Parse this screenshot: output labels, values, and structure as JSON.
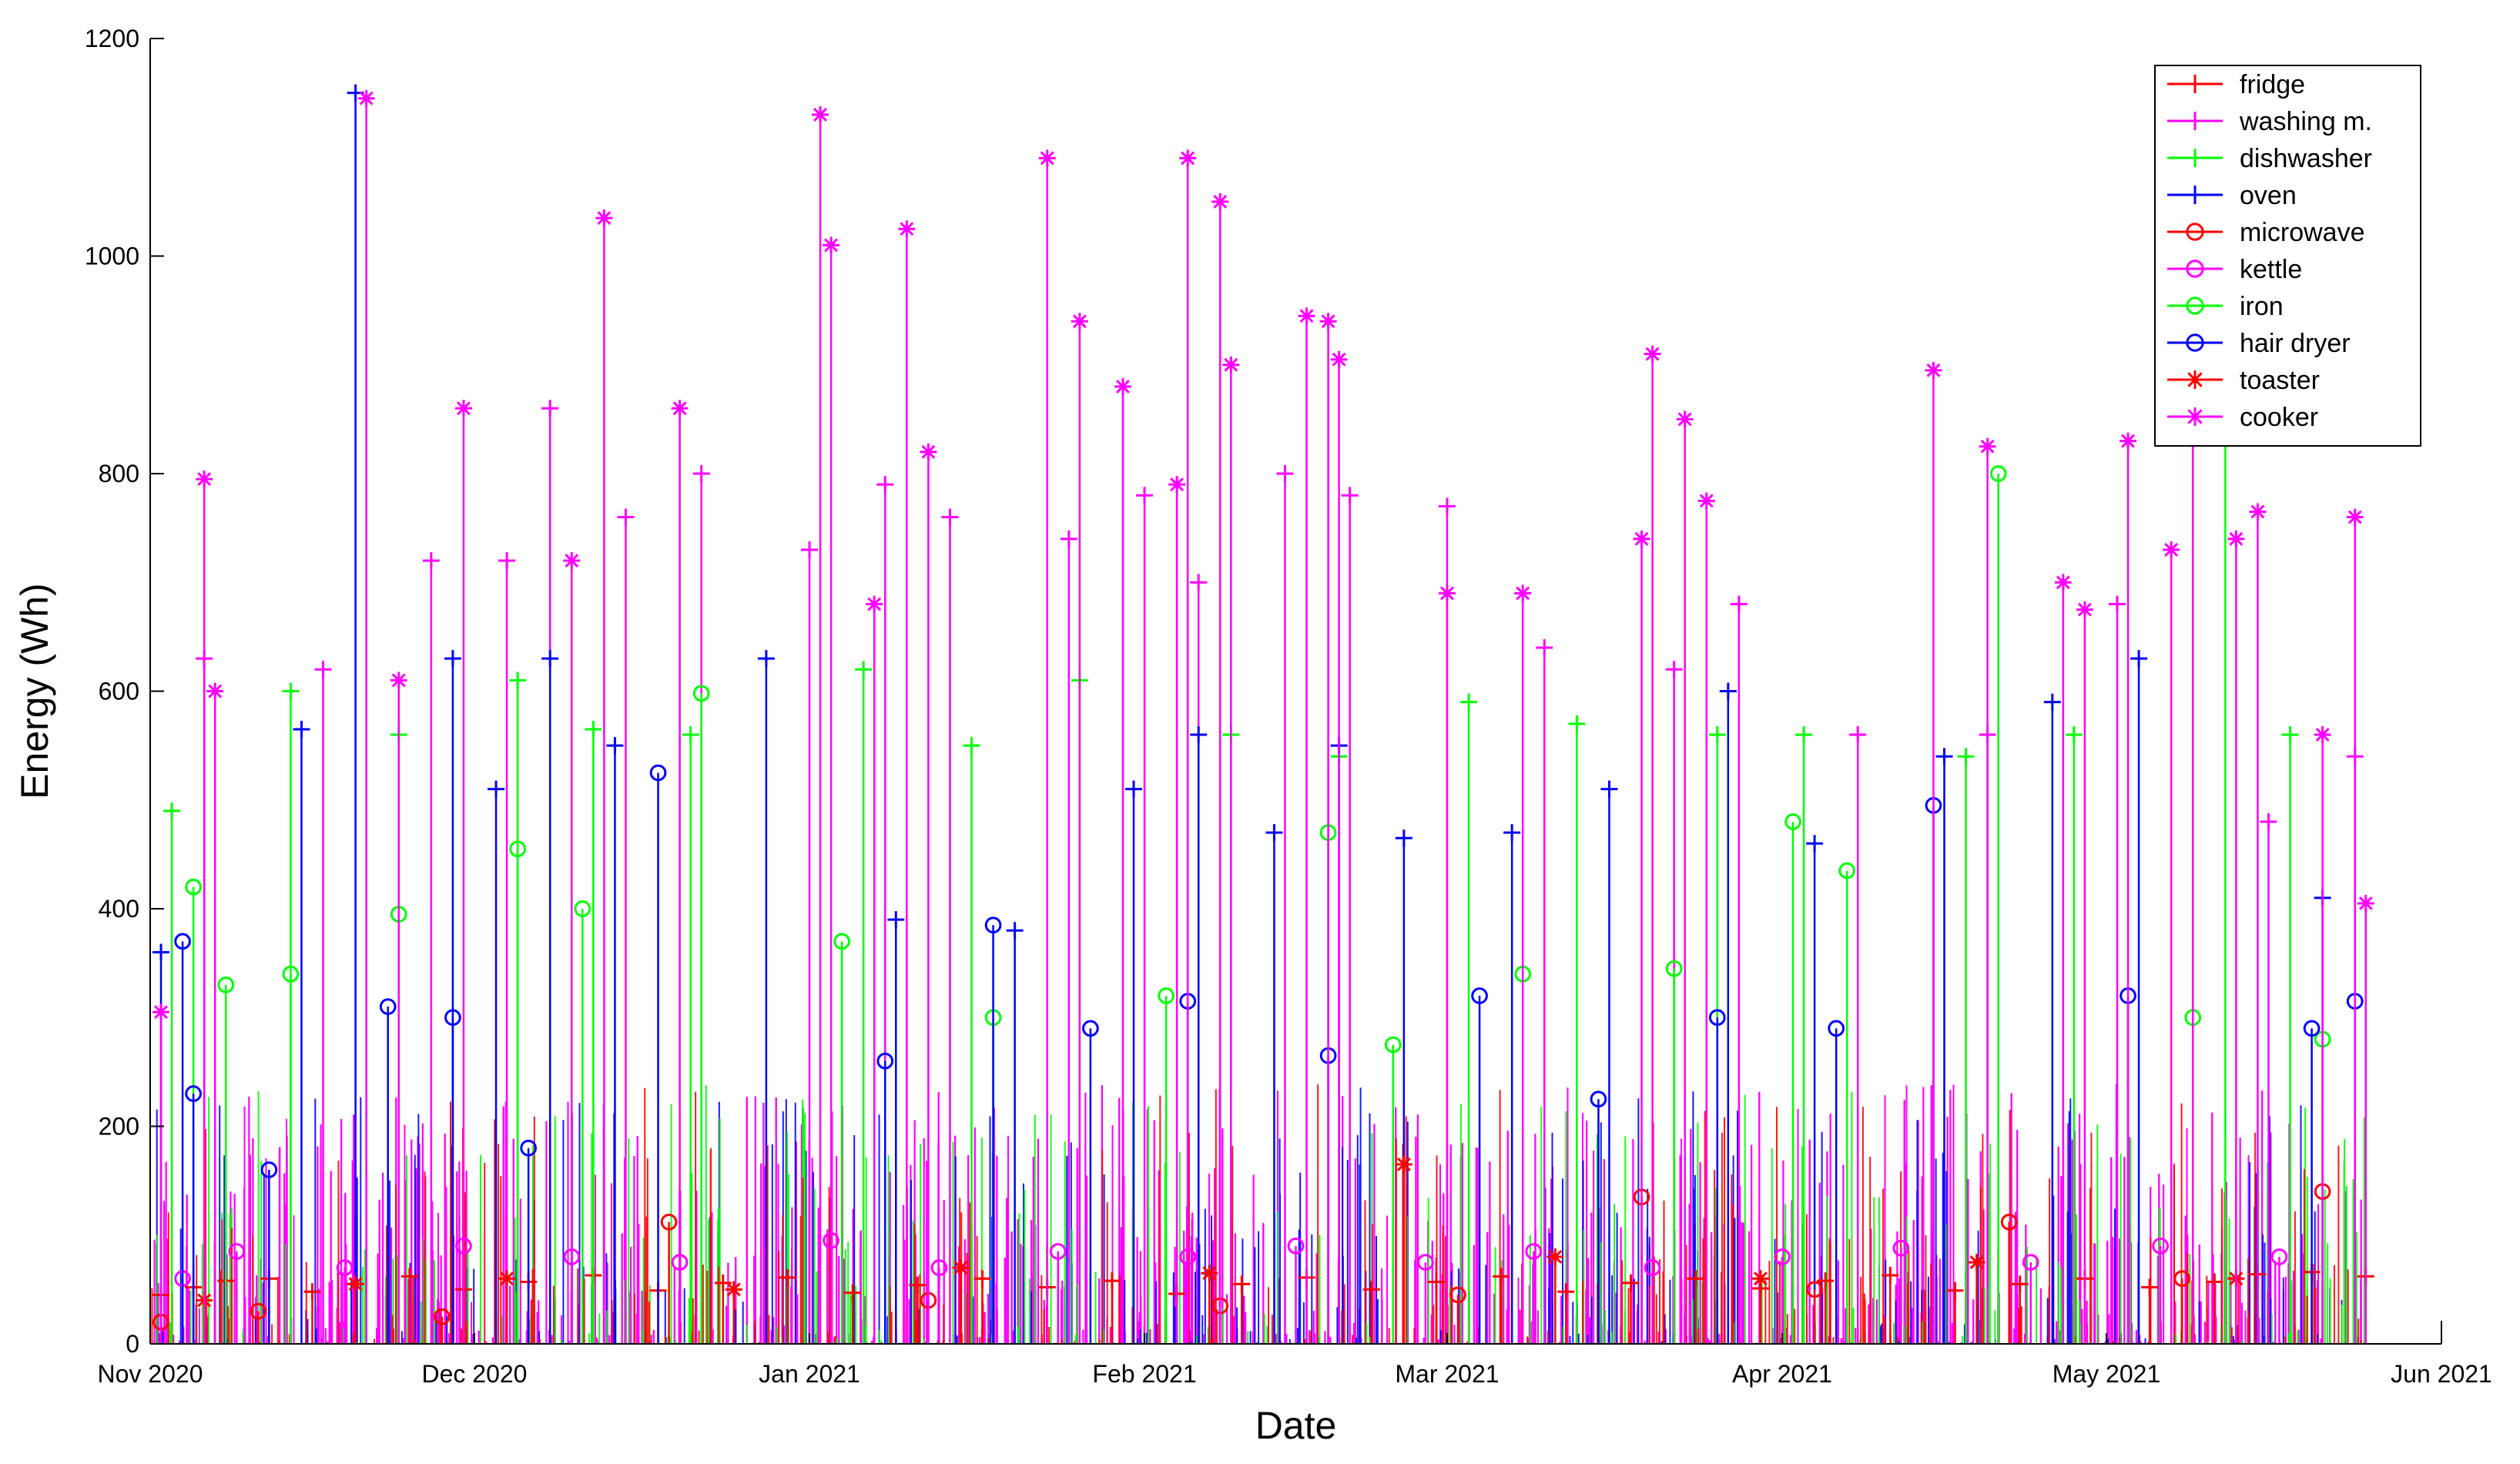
{
  "chart_data": {
    "type": "line",
    "xlabel": "Date",
    "ylabel": "Energy (Wh)",
    "x_range": [
      "2020-11-01",
      "2021-06-01"
    ],
    "ylim": [
      0,
      1200
    ],
    "x_ticks": [
      {
        "date": "2020-11-01",
        "label": "Nov 2020"
      },
      {
        "date": "2020-12-01",
        "label": "Dec 2020"
      },
      {
        "date": "2021-01-01",
        "label": "Jan 2021"
      },
      {
        "date": "2021-02-01",
        "label": "Feb 2021"
      },
      {
        "date": "2021-03-01",
        "label": "Mar 2021"
      },
      {
        "date": "2021-04-01",
        "label": "Apr 2021"
      },
      {
        "date": "2021-05-01",
        "label": "May 2021"
      },
      {
        "date": "2021-06-01",
        "label": "Jun 2021"
      }
    ],
    "y_ticks": [
      0,
      200,
      400,
      600,
      800,
      1000,
      1200
    ],
    "grid": false,
    "legend_position": "top-right",
    "series": [
      {
        "name": "fridge",
        "color": "#ff0000",
        "marker": "plus",
        "points": [
          [
            "2020-11-02",
            45
          ],
          [
            "2020-11-05",
            52
          ],
          [
            "2020-11-08",
            58
          ],
          [
            "2020-11-12",
            60
          ],
          [
            "2020-11-16",
            48
          ],
          [
            "2020-11-20",
            55
          ],
          [
            "2020-11-25",
            62
          ],
          [
            "2020-11-30",
            50
          ],
          [
            "2020-12-06",
            57
          ],
          [
            "2020-12-12",
            63
          ],
          [
            "2020-12-18",
            49
          ],
          [
            "2020-12-24",
            56
          ],
          [
            "2020-12-30",
            61
          ],
          [
            "2021-01-05",
            47
          ],
          [
            "2021-01-11",
            54
          ],
          [
            "2021-01-17",
            60
          ],
          [
            "2021-01-23",
            52
          ],
          [
            "2021-01-29",
            58
          ],
          [
            "2021-02-04",
            46
          ],
          [
            "2021-02-10",
            55
          ],
          [
            "2021-02-16",
            61
          ],
          [
            "2021-02-22",
            50
          ],
          [
            "2021-02-28",
            57
          ],
          [
            "2021-03-06",
            62
          ],
          [
            "2021-03-12",
            48
          ],
          [
            "2021-03-18",
            56
          ],
          [
            "2021-03-24",
            60
          ],
          [
            "2021-03-30",
            51
          ],
          [
            "2021-04-05",
            58
          ],
          [
            "2021-04-11",
            63
          ],
          [
            "2021-04-17",
            49
          ],
          [
            "2021-04-23",
            55
          ],
          [
            "2021-04-29",
            60
          ],
          [
            "2021-05-05",
            52
          ],
          [
            "2021-05-11",
            57
          ],
          [
            "2021-05-15",
            64
          ],
          [
            "2021-05-20",
            66
          ],
          [
            "2021-05-25",
            62
          ]
        ]
      },
      {
        "name": "washing m.",
        "color": "#ff00ff",
        "marker": "plus",
        "points": [
          [
            "2020-11-06",
            630
          ],
          [
            "2020-11-17",
            620
          ],
          [
            "2020-11-27",
            720
          ],
          [
            "2020-12-04",
            720
          ],
          [
            "2020-12-08",
            860
          ],
          [
            "2020-12-15",
            760
          ],
          [
            "2020-12-22",
            800
          ],
          [
            "2021-01-01",
            730
          ],
          [
            "2021-01-08",
            790
          ],
          [
            "2021-01-14",
            760
          ],
          [
            "2021-01-25",
            740
          ],
          [
            "2021-02-01",
            780
          ],
          [
            "2021-02-06",
            700
          ],
          [
            "2021-02-14",
            800
          ],
          [
            "2021-02-20",
            780
          ],
          [
            "2021-03-01",
            770
          ],
          [
            "2021-03-10",
            640
          ],
          [
            "2021-03-22",
            620
          ],
          [
            "2021-03-28",
            680
          ],
          [
            "2021-04-08",
            560
          ],
          [
            "2021-04-20",
            560
          ],
          [
            "2021-05-02",
            680
          ],
          [
            "2021-05-16",
            480
          ],
          [
            "2021-05-24",
            540
          ]
        ]
      },
      {
        "name": "dishwasher",
        "color": "#00ff00",
        "marker": "plus",
        "points": [
          [
            "2020-11-03",
            490
          ],
          [
            "2020-11-14",
            600
          ],
          [
            "2020-11-24",
            560
          ],
          [
            "2020-12-05",
            610
          ],
          [
            "2020-12-12",
            565
          ],
          [
            "2020-12-21",
            560
          ],
          [
            "2021-01-06",
            620
          ],
          [
            "2021-01-16",
            550
          ],
          [
            "2021-01-26",
            610
          ],
          [
            "2021-02-09",
            560
          ],
          [
            "2021-02-19",
            540
          ],
          [
            "2021-03-03",
            590
          ],
          [
            "2021-03-13",
            570
          ],
          [
            "2021-03-26",
            560
          ],
          [
            "2021-04-03",
            560
          ],
          [
            "2021-04-18",
            540
          ],
          [
            "2021-04-28",
            560
          ],
          [
            "2021-05-12",
            860
          ],
          [
            "2021-05-18",
            560
          ]
        ]
      },
      {
        "name": "oven",
        "color": "#0000ff",
        "marker": "plus",
        "points": [
          [
            "2020-11-02",
            360
          ],
          [
            "2020-11-15",
            565
          ],
          [
            "2020-11-20",
            1150
          ],
          [
            "2020-11-29",
            630
          ],
          [
            "2020-12-03",
            510
          ],
          [
            "2020-12-08",
            630
          ],
          [
            "2020-12-14",
            550
          ],
          [
            "2020-12-28",
            630
          ],
          [
            "2021-01-09",
            390
          ],
          [
            "2021-01-20",
            380
          ],
          [
            "2021-01-31",
            510
          ],
          [
            "2021-02-06",
            560
          ],
          [
            "2021-02-13",
            470
          ],
          [
            "2021-02-19",
            550
          ],
          [
            "2021-02-25",
            465
          ],
          [
            "2021-03-07",
            470
          ],
          [
            "2021-03-16",
            510
          ],
          [
            "2021-03-27",
            600
          ],
          [
            "2021-04-04",
            460
          ],
          [
            "2021-04-16",
            540
          ],
          [
            "2021-04-26",
            590
          ],
          [
            "2021-05-04",
            630
          ],
          [
            "2021-05-21",
            410
          ]
        ]
      },
      {
        "name": "microwave",
        "color": "#ff0000",
        "marker": "circle",
        "points": [
          [
            "2020-11-02",
            20
          ],
          [
            "2020-11-11",
            30
          ],
          [
            "2020-11-28",
            25
          ],
          [
            "2020-12-19",
            112
          ],
          [
            "2021-01-12",
            40
          ],
          [
            "2021-02-08",
            35
          ],
          [
            "2021-03-02",
            45
          ],
          [
            "2021-03-19",
            135
          ],
          [
            "2021-04-04",
            50
          ],
          [
            "2021-04-22",
            112
          ],
          [
            "2021-05-08",
            60
          ],
          [
            "2021-05-21",
            140
          ]
        ]
      },
      {
        "name": "kettle",
        "color": "#ff00ff",
        "marker": "circle",
        "points": [
          [
            "2020-11-04",
            60
          ],
          [
            "2020-11-09",
            85
          ],
          [
            "2020-11-19",
            70
          ],
          [
            "2020-11-30",
            90
          ],
          [
            "2020-12-10",
            80
          ],
          [
            "2020-12-20",
            75
          ],
          [
            "2021-01-03",
            95
          ],
          [
            "2021-01-13",
            70
          ],
          [
            "2021-01-24",
            85
          ],
          [
            "2021-02-05",
            80
          ],
          [
            "2021-02-15",
            90
          ],
          [
            "2021-02-27",
            75
          ],
          [
            "2021-03-09",
            85
          ],
          [
            "2021-03-20",
            70
          ],
          [
            "2021-04-01",
            80
          ],
          [
            "2021-04-12",
            88
          ],
          [
            "2021-04-24",
            75
          ],
          [
            "2021-05-06",
            90
          ],
          [
            "2021-05-17",
            80
          ]
        ]
      },
      {
        "name": "iron",
        "color": "#00ff00",
        "marker": "circle",
        "points": [
          [
            "2020-11-05",
            420
          ],
          [
            "2020-11-08",
            330
          ],
          [
            "2020-11-14",
            340
          ],
          [
            "2020-11-24",
            395
          ],
          [
            "2020-12-05",
            455
          ],
          [
            "2020-12-11",
            400
          ],
          [
            "2020-12-22",
            598
          ],
          [
            "2021-01-04",
            370
          ],
          [
            "2021-01-18",
            300
          ],
          [
            "2021-02-03",
            320
          ],
          [
            "2021-02-18",
            470
          ],
          [
            "2021-02-24",
            275
          ],
          [
            "2021-03-08",
            340
          ],
          [
            "2021-03-22",
            345
          ],
          [
            "2021-04-02",
            480
          ],
          [
            "2021-04-07",
            435
          ],
          [
            "2021-04-21",
            800
          ],
          [
            "2021-05-09",
            300
          ],
          [
            "2021-05-21",
            280
          ]
        ]
      },
      {
        "name": "hair dryer",
        "color": "#0000ff",
        "marker": "circle",
        "points": [
          [
            "2020-11-04",
            370
          ],
          [
            "2020-11-05",
            230
          ],
          [
            "2020-11-12",
            160
          ],
          [
            "2020-11-23",
            310
          ],
          [
            "2020-11-29",
            300
          ],
          [
            "2020-12-06",
            180
          ],
          [
            "2020-12-18",
            525
          ],
          [
            "2021-01-08",
            260
          ],
          [
            "2021-01-18",
            385
          ],
          [
            "2021-01-27",
            290
          ],
          [
            "2021-02-05",
            315
          ],
          [
            "2021-02-18",
            265
          ],
          [
            "2021-03-04",
            320
          ],
          [
            "2021-03-15",
            225
          ],
          [
            "2021-03-26",
            300
          ],
          [
            "2021-04-06",
            290
          ],
          [
            "2021-04-15",
            495
          ],
          [
            "2021-05-03",
            320
          ],
          [
            "2021-05-20",
            290
          ],
          [
            "2021-05-24",
            315
          ]
        ]
      },
      {
        "name": "toaster",
        "color": "#ff0000",
        "marker": "star",
        "points": [
          [
            "2020-11-06",
            40
          ],
          [
            "2020-11-20",
            55
          ],
          [
            "2020-12-04",
            60
          ],
          [
            "2020-12-25",
            50
          ],
          [
            "2021-01-15",
            70
          ],
          [
            "2021-02-07",
            65
          ],
          [
            "2021-02-25",
            165
          ],
          [
            "2021-03-11",
            80
          ],
          [
            "2021-03-30",
            60
          ],
          [
            "2021-04-19",
            75
          ],
          [
            "2021-05-13",
            60
          ]
        ]
      },
      {
        "name": "cooker",
        "color": "#ff00ff",
        "marker": "star",
        "points": [
          [
            "2020-11-02",
            305
          ],
          [
            "2020-11-06",
            795
          ],
          [
            "2020-11-07",
            600
          ],
          [
            "2020-11-21",
            1145
          ],
          [
            "2020-11-24",
            610
          ],
          [
            "2020-11-30",
            860
          ],
          [
            "2020-12-10",
            720
          ],
          [
            "2020-12-13",
            1035
          ],
          [
            "2020-12-20",
            860
          ],
          [
            "2021-01-02",
            1130
          ],
          [
            "2021-01-03",
            1010
          ],
          [
            "2021-01-07",
            680
          ],
          [
            "2021-01-10",
            1025
          ],
          [
            "2021-01-12",
            820
          ],
          [
            "2021-01-23",
            1090
          ],
          [
            "2021-01-26",
            940
          ],
          [
            "2021-01-30",
            880
          ],
          [
            "2021-02-04",
            790
          ],
          [
            "2021-02-05",
            1090
          ],
          [
            "2021-02-08",
            1050
          ],
          [
            "2021-02-09",
            900
          ],
          [
            "2021-02-16",
            945
          ],
          [
            "2021-02-18",
            940
          ],
          [
            "2021-02-19",
            905
          ],
          [
            "2021-03-01",
            690
          ],
          [
            "2021-03-08",
            690
          ],
          [
            "2021-03-19",
            740
          ],
          [
            "2021-03-20",
            910
          ],
          [
            "2021-03-23",
            850
          ],
          [
            "2021-03-25",
            775
          ],
          [
            "2021-04-15",
            895
          ],
          [
            "2021-04-20",
            825
          ],
          [
            "2021-04-27",
            700
          ],
          [
            "2021-04-29",
            675
          ],
          [
            "2021-05-03",
            830
          ],
          [
            "2021-05-07",
            730
          ],
          [
            "2021-05-09",
            1100
          ],
          [
            "2021-05-13",
            740
          ],
          [
            "2021-05-15",
            765
          ],
          [
            "2021-05-21",
            560
          ],
          [
            "2021-05-24",
            760
          ],
          [
            "2021-05-25",
            405
          ]
        ]
      }
    ]
  }
}
